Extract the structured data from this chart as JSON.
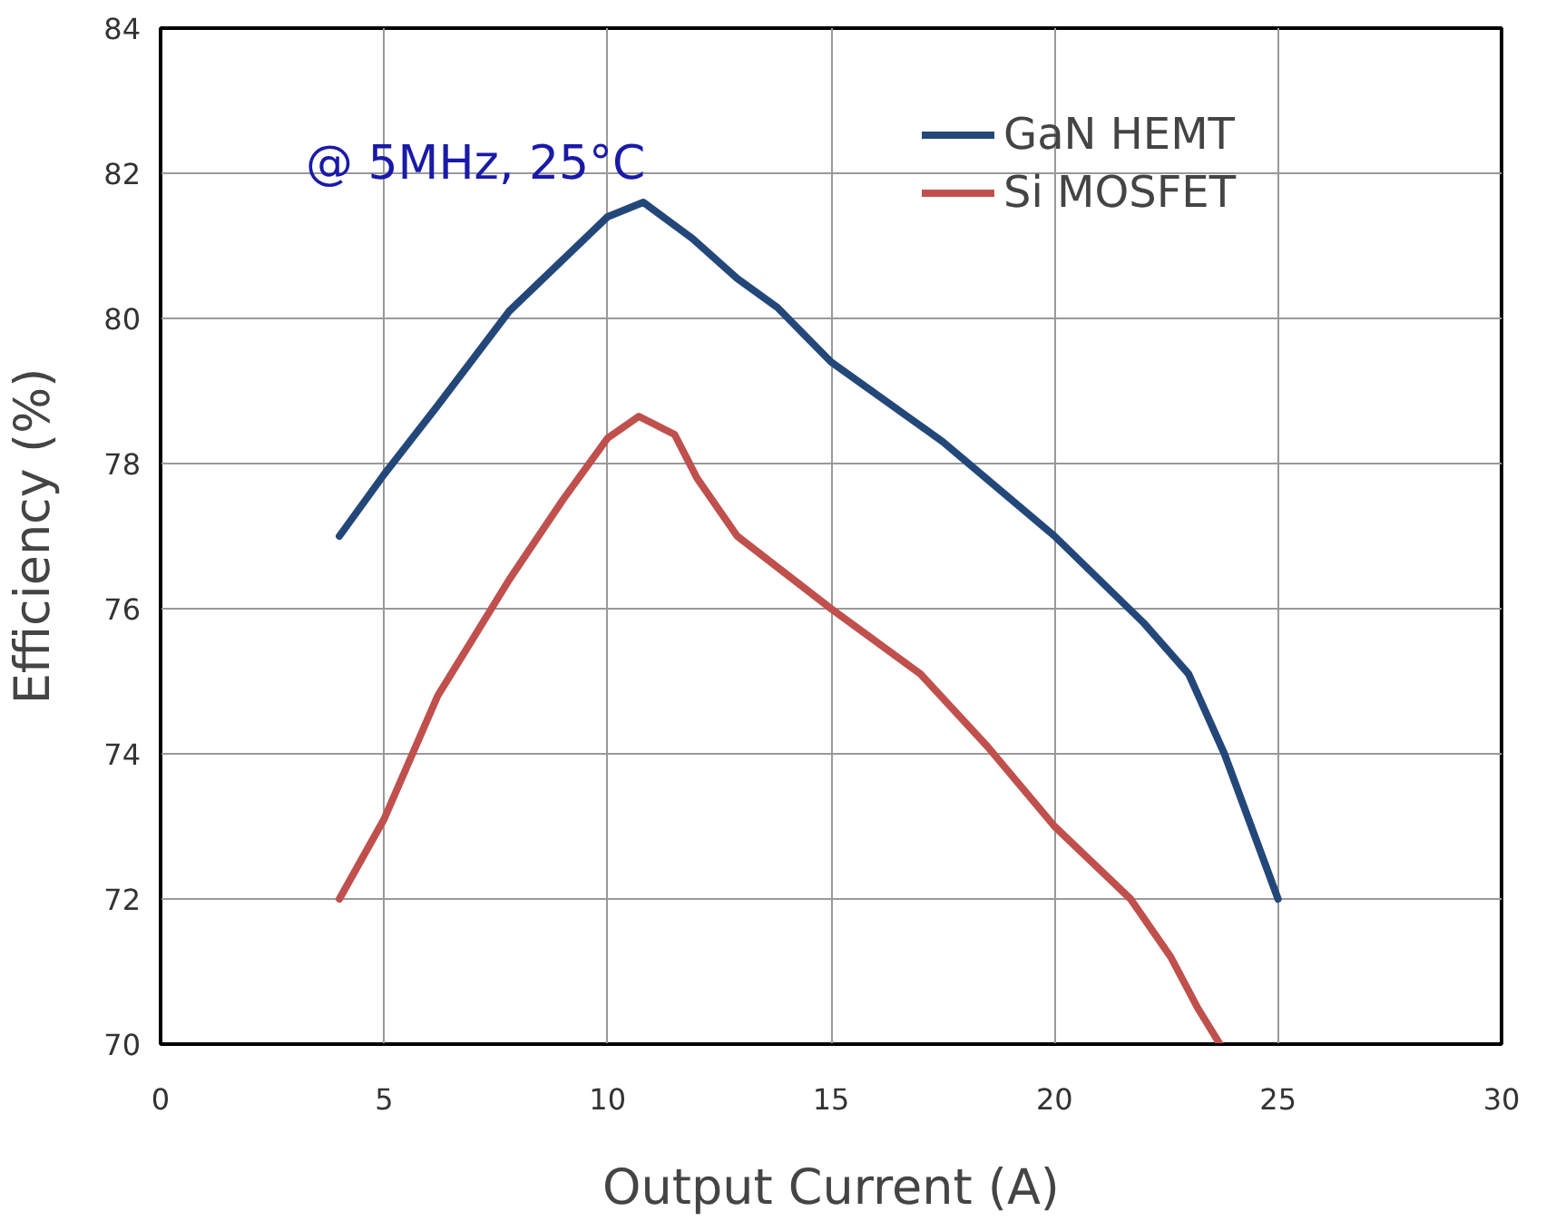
{
  "chart_data": {
    "type": "line",
    "xlabel": "Output Current (A)",
    "ylabel": "Efficiency (%)",
    "annotations": [
      "@ 5MHz, 25°C"
    ],
    "xlim": [
      0,
      30
    ],
    "xticks": [
      0,
      5,
      10,
      15,
      20,
      25,
      30
    ],
    "ylim": [
      70,
      84
    ],
    "yticks": [
      70,
      72,
      74,
      76,
      78,
      80,
      82,
      84
    ],
    "grid": true,
    "legend": "top right",
    "marker": "none",
    "line_style": "solid",
    "series": [
      {
        "name": "GaN HEMT",
        "color": "#24477a",
        "x": [
          4,
          5,
          6.2,
          7.8,
          10,
          10.8,
          11.9,
          12.9,
          13.8,
          15,
          17.5,
          20,
          22,
          23,
          23.8,
          25
        ],
        "values": [
          77,
          77.85,
          78.8,
          80.1,
          81.4,
          81.6,
          81.1,
          80.55,
          80.15,
          79.4,
          78.3,
          77.0,
          75.8,
          75.1,
          74.0,
          72
        ]
      },
      {
        "name": "Si MOSFET",
        "color": "#c0504d",
        "x": [
          4,
          5,
          6.2,
          7.8,
          9,
          10,
          10.7,
          11.5,
          12,
          12.9,
          15,
          17,
          18.5,
          20,
          21.7,
          22.6,
          23.2,
          23.7
        ],
        "values": [
          72,
          73.1,
          74.8,
          76.4,
          77.5,
          78.35,
          78.65,
          78.4,
          77.8,
          77.0,
          76.0,
          75.1,
          74.1,
          73.0,
          72.0,
          71.2,
          70.5,
          70.0
        ]
      }
    ]
  }
}
